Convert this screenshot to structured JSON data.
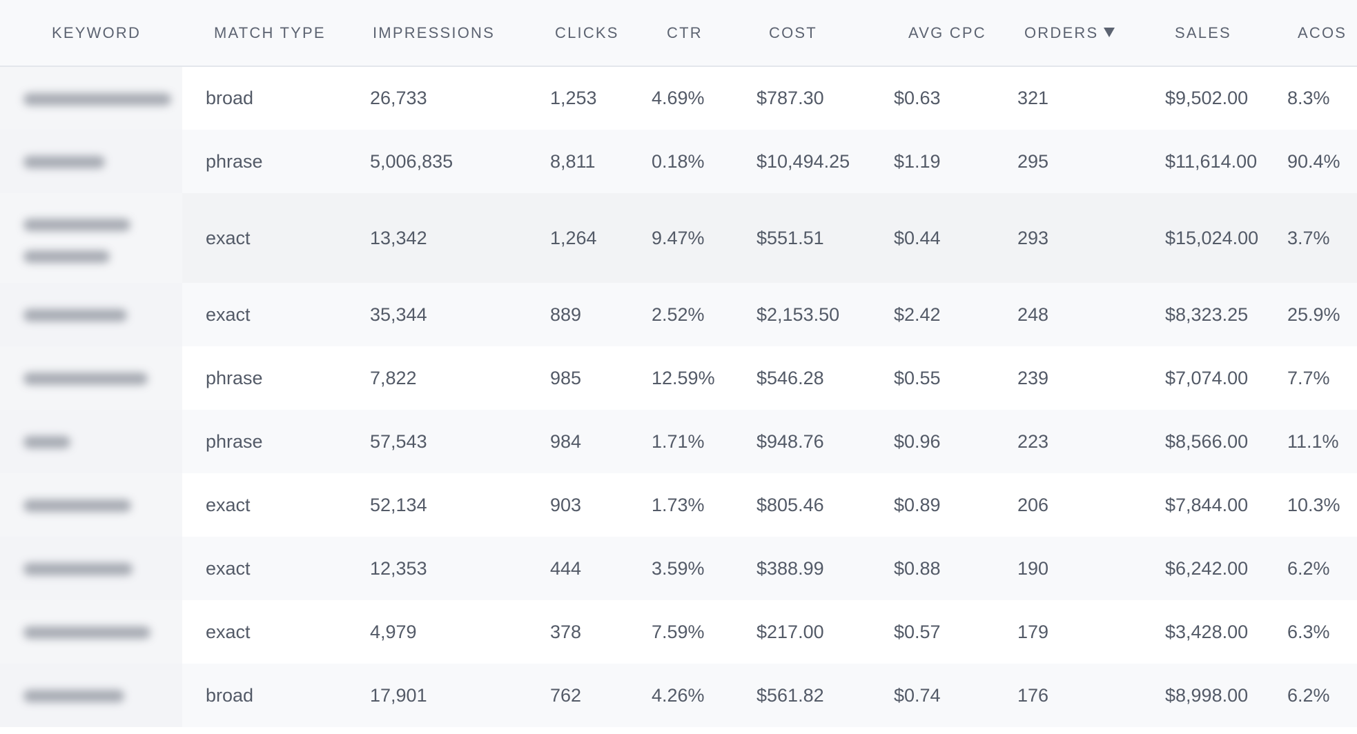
{
  "table": {
    "headers": {
      "keyword": "KEYWORD",
      "match_type": "MATCH TYPE",
      "impressions": "IMPRESSIONS",
      "clicks": "CLICKS",
      "ctr": "CTR",
      "cost": "COST",
      "avg_cpc": "AVG CPC",
      "orders": "ORDERS",
      "sales": "SALES",
      "acos": "ACOS"
    },
    "sort": {
      "column": "orders",
      "direction": "descending",
      "icon": "sort-down-icon"
    },
    "rows": [
      {
        "match_type": "broad",
        "impressions": "26,733",
        "clicks": "1,253",
        "ctr": "4.69%",
        "cost": "$787.30",
        "avg_cpc": "$0.63",
        "orders": "321",
        "sales": "$9,502.00",
        "acos": "8.3%"
      },
      {
        "match_type": "phrase",
        "impressions": "5,006,835",
        "clicks": "8,811",
        "ctr": "0.18%",
        "cost": "$10,494.25",
        "avg_cpc": "$1.19",
        "orders": "295",
        "sales": "$11,614.00",
        "acos": "90.4%"
      },
      {
        "match_type": "exact",
        "impressions": "13,342",
        "clicks": "1,264",
        "ctr": "9.47%",
        "cost": "$551.51",
        "avg_cpc": "$0.44",
        "orders": "293",
        "sales": "$15,024.00",
        "acos": "3.7%"
      },
      {
        "match_type": "exact",
        "impressions": "35,344",
        "clicks": "889",
        "ctr": "2.52%",
        "cost": "$2,153.50",
        "avg_cpc": "$2.42",
        "orders": "248",
        "sales": "$8,323.25",
        "acos": "25.9%"
      },
      {
        "match_type": "phrase",
        "impressions": "7,822",
        "clicks": "985",
        "ctr": "12.59%",
        "cost": "$546.28",
        "avg_cpc": "$0.55",
        "orders": "239",
        "sales": "$7,074.00",
        "acos": "7.7%"
      },
      {
        "match_type": "phrase",
        "impressions": "57,543",
        "clicks": "984",
        "ctr": "1.71%",
        "cost": "$948.76",
        "avg_cpc": "$0.96",
        "orders": "223",
        "sales": "$8,566.00",
        "acos": "11.1%"
      },
      {
        "match_type": "exact",
        "impressions": "52,134",
        "clicks": "903",
        "ctr": "1.73%",
        "cost": "$805.46",
        "avg_cpc": "$0.89",
        "orders": "206",
        "sales": "$7,844.00",
        "acos": "10.3%"
      },
      {
        "match_type": "exact",
        "impressions": "12,353",
        "clicks": "444",
        "ctr": "3.59%",
        "cost": "$388.99",
        "avg_cpc": "$0.88",
        "orders": "190",
        "sales": "$6,242.00",
        "acos": "6.2%"
      },
      {
        "match_type": "exact",
        "impressions": "4,979",
        "clicks": "378",
        "ctr": "7.59%",
        "cost": "$217.00",
        "avg_cpc": "$0.57",
        "orders": "179",
        "sales": "$3,428.00",
        "acos": "6.3%"
      },
      {
        "match_type": "broad",
        "impressions": "17,901",
        "clicks": "762",
        "ctr": "4.26%",
        "cost": "$561.82",
        "avg_cpc": "$0.74",
        "orders": "176",
        "sales": "$8,998.00",
        "acos": "6.2%"
      }
    ]
  }
}
